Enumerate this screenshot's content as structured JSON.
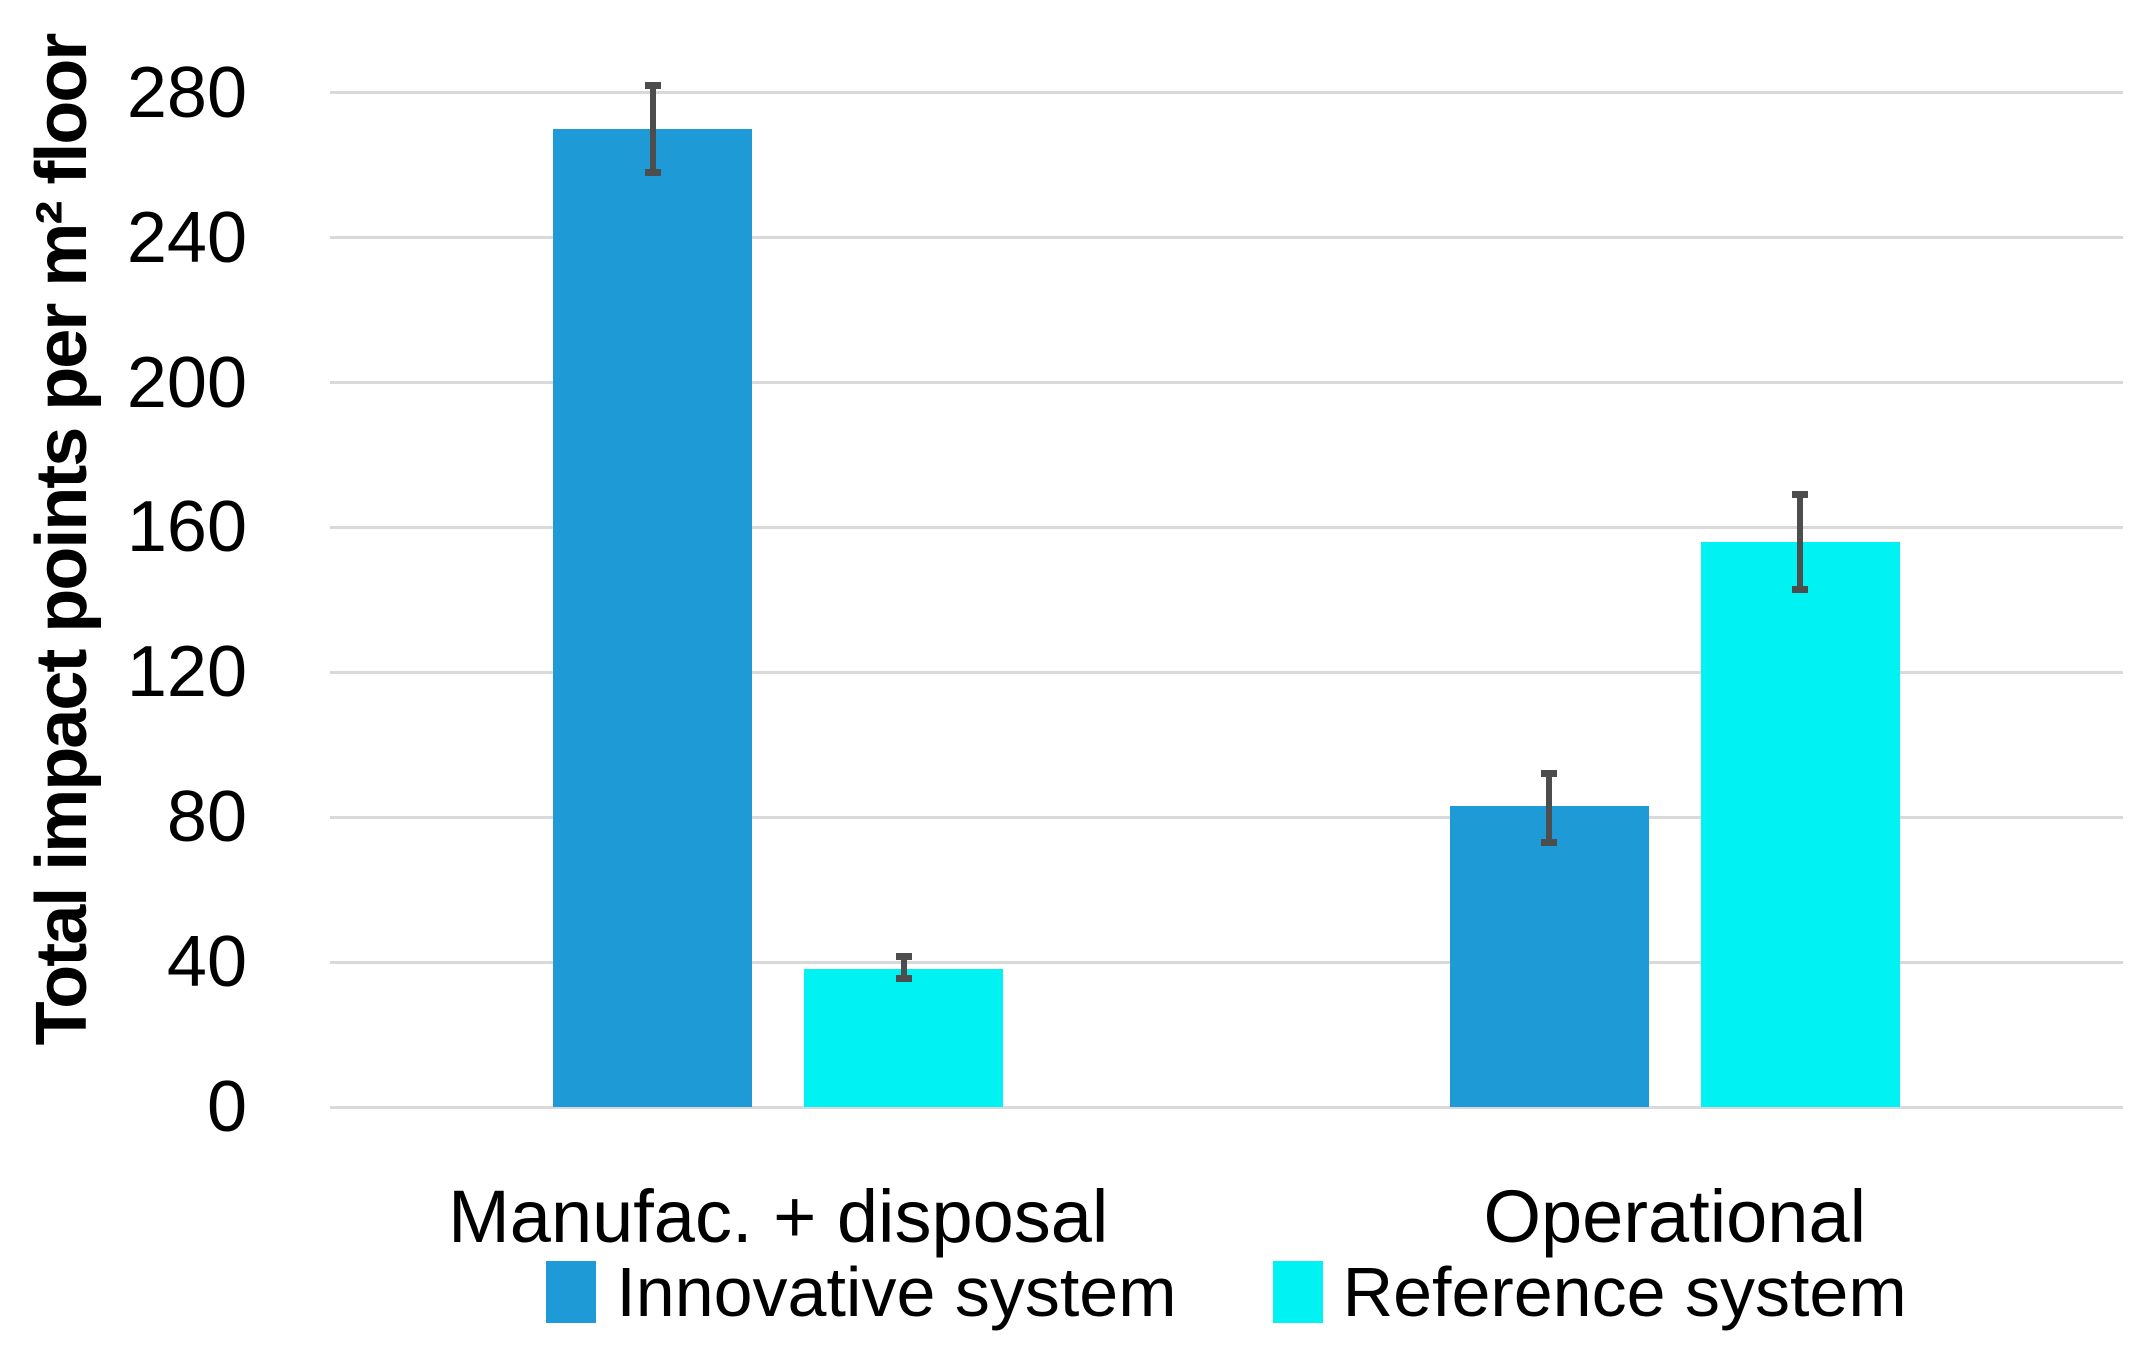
{
  "chart_data": {
    "type": "bar",
    "title": "",
    "xlabel": "",
    "ylabel": "Total impact points per m² floor",
    "categories": [
      "Manufac. + disposal",
      "Operational"
    ],
    "series": [
      {
        "name": "Innovative system",
        "color": "#1E9BD7",
        "values": [
          270,
          83
        ],
        "error_low": [
          257,
          72
        ],
        "error_high": [
          283,
          93
        ]
      },
      {
        "name": "Reference system",
        "color": "#00F2F2",
        "values": [
          38,
          156
        ],
        "error_low": [
          34.5,
          142
        ],
        "error_high": [
          42.5,
          170
        ]
      }
    ],
    "y_ticks": [
      0,
      40,
      80,
      120,
      160,
      200,
      240,
      280
    ],
    "ylim": [
      0,
      280
    ],
    "grid": true,
    "legend_position": "bottom",
    "colors": {
      "gridline": "#D9D9D9",
      "error_bar": "#4D4D4D",
      "background": "#FFFFFF",
      "text": "#000000"
    }
  }
}
